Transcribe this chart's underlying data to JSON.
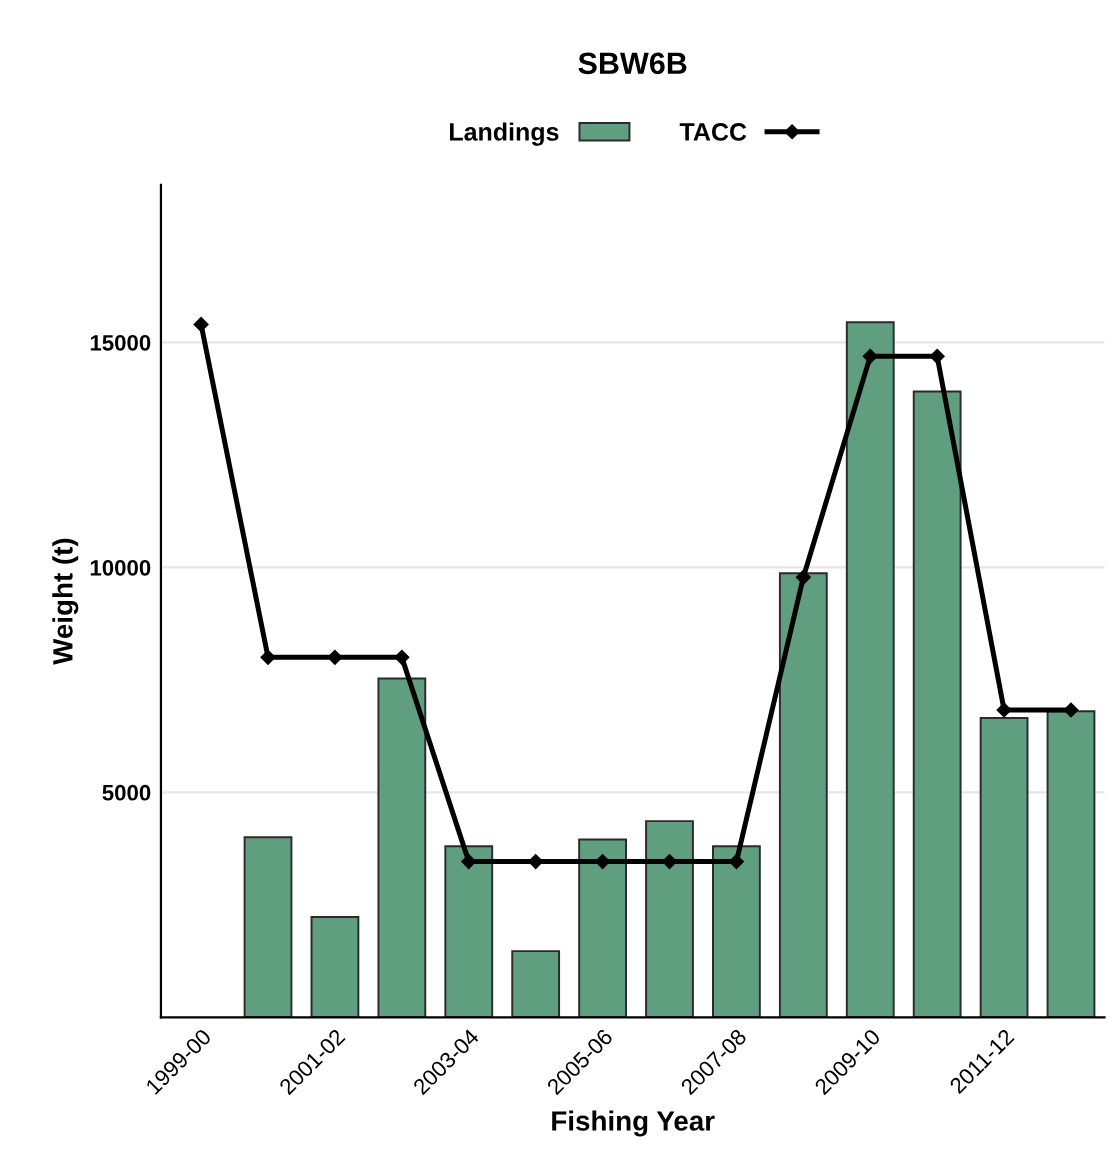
{
  "chart_data": {
    "type": "bar",
    "title": "SBW6B",
    "xlabel": "Fishing Year",
    "ylabel": "Weight (t)",
    "categories": [
      "1999-00",
      null,
      "2001-02",
      null,
      "2003-04",
      null,
      "2005-06",
      null,
      "2007-08",
      null,
      "2009-10",
      null,
      "2011-12",
      null
    ],
    "series": [
      {
        "name": "Landings",
        "color": "#5f9e7f",
        "values": [
          null,
          4000,
          2230,
          7530,
          3800,
          1470,
          3950,
          4360,
          3800,
          9870,
          15450,
          13910,
          6650,
          6800
        ]
      },
      {
        "name": "TACC",
        "type": "line",
        "color": "#000000",
        "marker": "diamond",
        "values": [
          15400,
          8000,
          8000,
          8000,
          3460,
          3460,
          3460,
          3460,
          3460,
          9780,
          14690,
          14690,
          6830,
          6830
        ]
      }
    ],
    "ylim": [
      0,
      18500
    ],
    "yticks": [
      5000,
      10000,
      15000
    ],
    "grid": "y",
    "legend": "top"
  }
}
